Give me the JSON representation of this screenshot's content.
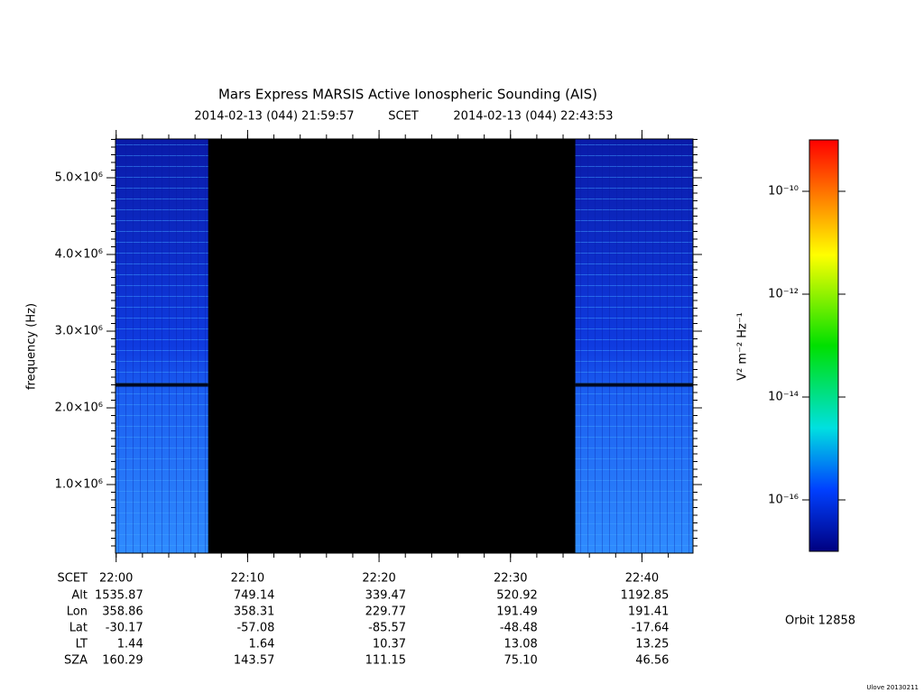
{
  "chart_data": {
    "type": "spectrogram",
    "title": "Mars Express MARSIS Active Ionospheric Sounding (AIS)",
    "subtitle": [
      "2014-02-13 (044) 21:59:57",
      "SCET",
      "2014-02-13 (044) 22:43:53"
    ],
    "ylabel": "frequency (Hz)",
    "xlim": [
      1319.95,
      1363.883
    ],
    "xticks": [
      {
        "value": 1320,
        "label": "22:00"
      },
      {
        "value": 1330,
        "label": "22:10"
      },
      {
        "value": 1340,
        "label": "22:20"
      },
      {
        "value": 1350,
        "label": "22:30"
      },
      {
        "value": 1360,
        "label": "22:40"
      }
    ],
    "xlabel": "SCET",
    "ylim": [
      106000,
      5506000
    ],
    "yticks": [
      {
        "value": 1000000,
        "label": "1.0×10⁶"
      },
      {
        "value": 2000000,
        "label": "2.0×10⁶"
      },
      {
        "value": 3000000,
        "label": "3.0×10⁶"
      },
      {
        "value": 4000000,
        "label": "4.0×10⁶"
      },
      {
        "value": 5000000,
        "label": "5.0×10⁶"
      }
    ],
    "data_coverage": [
      [
        1319.95,
        1327.0
      ],
      [
        1354.93,
        1363.883
      ]
    ],
    "colorbar": {
      "label": "V² m⁻² Hz⁻¹",
      "log": true,
      "lim": [
        1e-17,
        1e-09
      ],
      "ticks": [
        {
          "value": 1e-10,
          "label": "10⁻¹⁰"
        },
        {
          "value": 1e-12,
          "label": "10⁻¹²"
        },
        {
          "value": 1e-14,
          "label": "10⁻¹⁴"
        },
        {
          "value": 1e-16,
          "label": "10⁻¹⁶"
        }
      ]
    },
    "ephemeris": [
      {
        "label": "Alt",
        "values": [
          "1535.87",
          "749.14",
          "339.47",
          "520.92",
          "1192.85"
        ]
      },
      {
        "label": "Lon",
        "values": [
          "358.86",
          "358.31",
          "229.77",
          "191.49",
          "191.41"
        ]
      },
      {
        "label": "Lat",
        "values": [
          "-30.17",
          "-57.08",
          "-85.57",
          "-48.48",
          "-17.64"
        ]
      },
      {
        "label": "LT",
        "values": [
          "1.44",
          "1.64",
          "10.37",
          "13.08",
          "13.25"
        ]
      },
      {
        "label": "SZA",
        "values": [
          "160.29",
          "143.57",
          "111.15",
          "75.10",
          "46.56"
        ]
      }
    ],
    "orbit": "Orbit 12858",
    "footer": "Ulove 20130211"
  }
}
